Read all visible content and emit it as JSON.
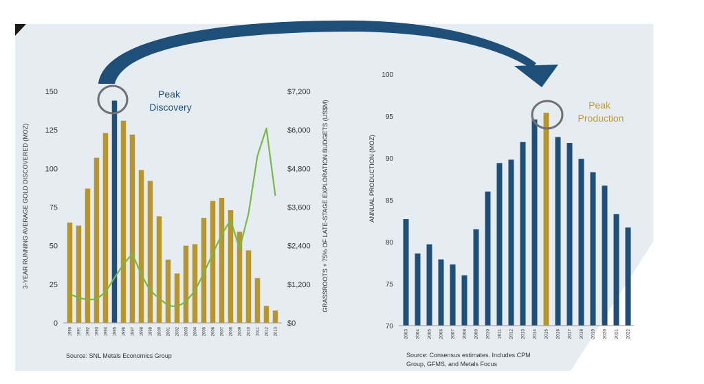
{
  "colors": {
    "panel_bg": "#e6edf2",
    "gold_bar": "#b8962e",
    "peak_blue_bar": "#1f4e79",
    "blue_bar": "#1f4e79",
    "line_green": "#7ab648",
    "arrow_navy": "#1f4e79",
    "circle_gray": "#707070",
    "axis_text": "#333333",
    "annot_blue": "#1f4e79",
    "annot_gold": "#c09a35"
  },
  "chart_data": [
    {
      "type": "bar",
      "title": "",
      "xlabel": "",
      "ylabel": "3-YEAR RUNNING AVERAGE GOLD DISCOVERED (MOZ)",
      "y2label": "GRASSROOTS + 75% OF LATE-STAGE EXPLORATION BUDGETS (US$M)",
      "ylim": [
        0,
        150
      ],
      "yticks": [
        0,
        25,
        50,
        75,
        100,
        125,
        150
      ],
      "y2lim": [
        0,
        7200
      ],
      "y2ticks": [
        "$0",
        "$1,200",
        "$2,400",
        "$3,600",
        "$4,800",
        "$6,000",
        "$7,200"
      ],
      "categories": [
        "1990",
        "1991",
        "1992",
        "1993",
        "1994",
        "1995",
        "1996",
        "1997",
        "1998",
        "1999",
        "2000",
        "2001",
        "2002",
        "2003",
        "2004",
        "2005",
        "2006",
        "2007",
        "2008",
        "2009",
        "2010",
        "2011",
        "2012",
        "2013"
      ],
      "series": [
        {
          "name": "Gold discovered (MOZ)",
          "values": [
            65,
            63,
            87,
            107,
            123,
            144,
            131,
            122,
            99,
            92,
            69,
            41,
            32,
            50,
            51,
            68,
            79,
            81,
            73,
            59,
            47,
            29,
            11,
            8
          ]
        },
        {
          "name": "Exploration budgets (US$M)",
          "axis": "secondary",
          "kind": "line",
          "values": [
            900,
            780,
            720,
            740,
            960,
            1400,
            1820,
            2150,
            1500,
            1000,
            760,
            540,
            500,
            660,
            1000,
            1550,
            2150,
            2750,
            3200,
            2300,
            3400,
            5200,
            6050,
            3950
          ]
        }
      ],
      "highlight_category": "1995",
      "annotation": "Peak\nDiscovery",
      "annotation_lines": [
        "Peak",
        "Discovery"
      ],
      "source": "Source: SNL Metals Economics Group"
    },
    {
      "type": "bar",
      "title": "",
      "xlabel": "",
      "ylabel": "ANNUAL PRODUCTION (MOZ)",
      "ylim": [
        70,
        100
      ],
      "yticks": [
        70,
        75,
        80,
        85,
        90,
        95,
        100
      ],
      "categories": [
        "2003",
        "2004",
        "2005",
        "2006",
        "2007",
        "2008",
        "2009",
        "2010",
        "2011",
        "2012",
        "2013",
        "2014",
        "2015",
        "2016",
        "2017",
        "2018",
        "2019",
        "2020",
        "2021",
        "2022"
      ],
      "series": [
        {
          "name": "Annual production (MOZ)",
          "values": [
            82.7,
            78.6,
            79.7,
            77.9,
            77.3,
            76.0,
            81.5,
            86.0,
            89.4,
            89.8,
            91.9,
            94.6,
            95.4,
            92.5,
            91.8,
            89.9,
            88.3,
            86.7,
            83.3,
            81.7
          ]
        }
      ],
      "highlight_category": "2015",
      "annotation": "Peak\nProduction",
      "annotation_lines": [
        "Peak",
        "Production"
      ],
      "source_lines": [
        "Source: Consensus estimates.  Includes CPM",
        "Group, GFMS, and Metals Focus"
      ]
    }
  ]
}
